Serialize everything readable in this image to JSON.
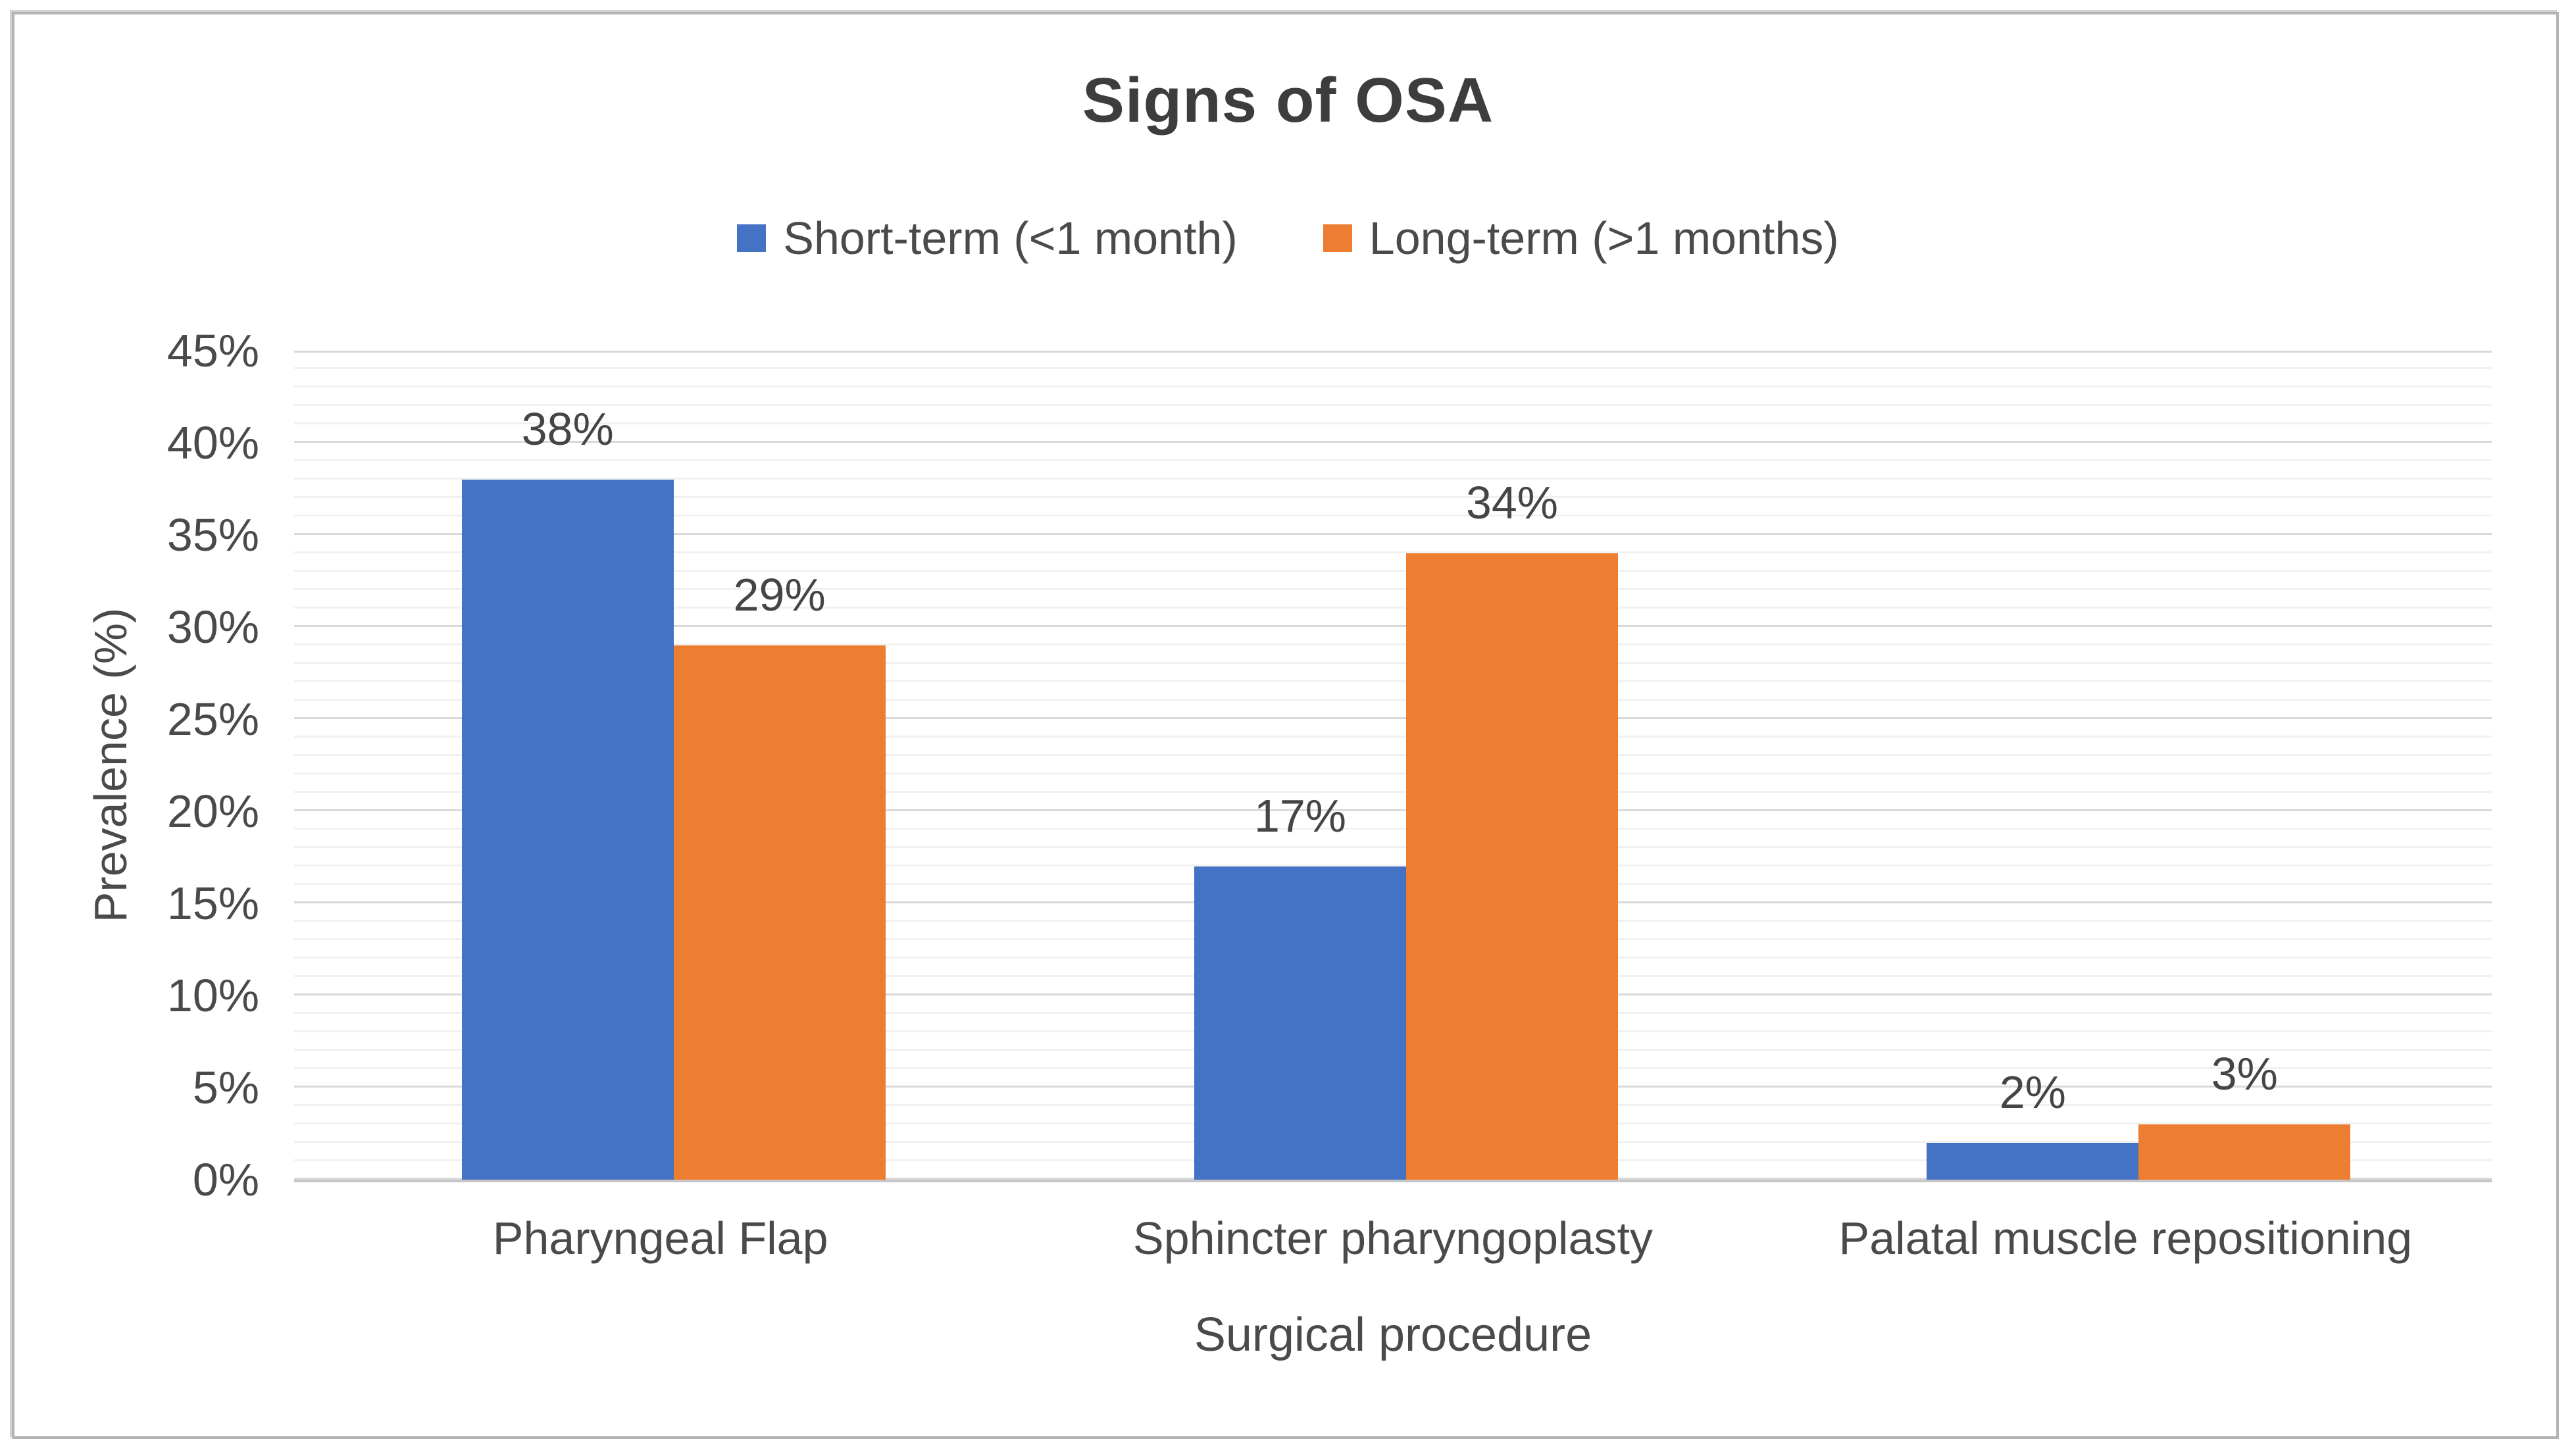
{
  "chart_data": {
    "type": "bar",
    "title": "Signs of OSA",
    "categories": [
      "Pharyngeal Flap",
      "Sphincter pharyngoplasty",
      "Palatal muscle repositioning"
    ],
    "series": [
      {
        "name": "Short-term (<1 month)",
        "color": "#4472C4",
        "values": [
          38,
          17,
          2
        ],
        "labels": [
          "38%",
          "17%",
          "2%"
        ]
      },
      {
        "name": "Long-term (>1 months)",
        "color": "#ED7D31",
        "values": [
          29,
          34,
          3
        ],
        "labels": [
          "29%",
          "34%",
          "3%"
        ]
      }
    ],
    "xlabel": "Surgical procedure",
    "ylabel": "Prevalence (%)",
    "ylim": [
      0,
      45
    ],
    "ymajor_step": 5,
    "yminor_step": 1,
    "yticks": [
      "0%",
      "5%",
      "10%",
      "15%",
      "20%",
      "25%",
      "30%",
      "35%",
      "40%",
      "45%"
    ],
    "grid": "major-and-minor-horizontal",
    "legend_position": "top",
    "value_suffix": "%"
  }
}
